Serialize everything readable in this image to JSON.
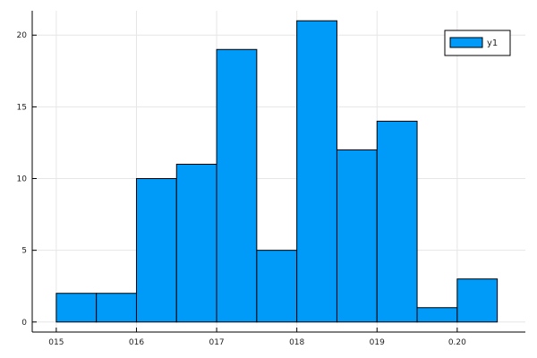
{
  "chart_data": {
    "type": "bar",
    "subtype": "histogram",
    "title": "",
    "xlabel": "",
    "ylabel": "",
    "bin_edges": [
      0.15,
      0.155,
      0.16,
      0.165,
      0.17,
      0.175,
      0.18,
      0.185,
      0.19,
      0.195,
      0.2,
      0.205
    ],
    "series": [
      {
        "name": "y1",
        "color": "#009af9",
        "values": [
          2,
          2,
          10,
          11,
          19,
          5,
          21,
          12,
          14,
          1,
          3
        ]
      }
    ],
    "xlim": [
      0.147,
      0.2085
    ],
    "ylim": [
      -0.7,
      21.7
    ],
    "xticks": [
      0.15,
      0.16,
      0.17,
      0.18,
      0.19,
      0.2
    ],
    "xtick_labels": [
      "015",
      "016",
      "017",
      "018",
      "019",
      "0.20"
    ],
    "yticks": [
      0,
      5,
      10,
      15,
      20
    ],
    "ytick_labels": [
      "0",
      "5",
      "10",
      "15",
      "20"
    ],
    "grid": true,
    "legend": {
      "position": "top-right",
      "entries": [
        "y1"
      ]
    }
  }
}
